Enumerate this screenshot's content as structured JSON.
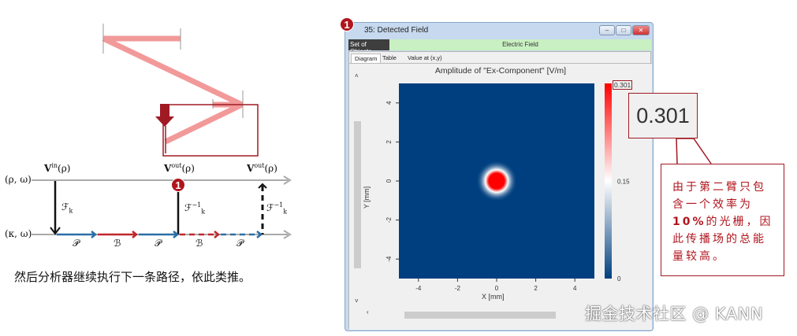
{
  "diagram": {
    "top_axis_label": "(ρ, ω)",
    "bottom_axis_label": "(κ, ω)",
    "v_in": {
      "base": "V",
      "sup": "in",
      "sub": "⊥",
      "arg": "(ρ)"
    },
    "v_out": {
      "base": "V",
      "sup": "out",
      "sub": "⊥",
      "arg": "(ρ)"
    },
    "f_k": {
      "base": "ℱ",
      "sub": "k"
    },
    "f_k_inv": {
      "base": "ℱ",
      "sub": "k",
      "sup": "−1"
    },
    "segments": [
      "𝒫",
      "ℬ",
      "𝒫",
      "ℬ",
      "𝒫"
    ],
    "badge": "1",
    "colors": {
      "propagation": "#2b6ea6",
      "grating": "#c0262e",
      "beam": "#f08080",
      "highlight": "#a01a24"
    }
  },
  "paragraph": "然后分析器继续执行下一条路径，依此类推。",
  "window": {
    "badge": "1",
    "title": "35: Detected Field",
    "buttons": {
      "minimize": "–",
      "maximize": "□",
      "close": "✕"
    },
    "set_of_objects": "Set of Objects",
    "object_name": "Electric Field",
    "tabs": [
      {
        "label": "Diagram",
        "active": true
      },
      {
        "label": "Table",
        "active": false
      },
      {
        "label": "Value at (x,y)",
        "active": false
      }
    ]
  },
  "chart_data": {
    "type": "heatmap",
    "title": "Amplitude of \"Ex-Component\"  [V/m]",
    "xlabel": "X [mm]",
    "ylabel": "Y [mm]",
    "xlim": [
      -5,
      5
    ],
    "ylim": [
      -5,
      5
    ],
    "xticks": [
      "-4",
      "-2",
      "0",
      "2",
      "4"
    ],
    "yticks": [
      "-4",
      "-2",
      "0",
      "2",
      "4"
    ],
    "colorbar": {
      "min": 0,
      "max": 0.301,
      "ticks": [
        "0",
        "0.15",
        "0.301"
      ],
      "colors": [
        "#003f7f",
        "#ffffff",
        "#ff0000"
      ]
    },
    "content": "circular spot centered at (0,0), peak 0.301 inside radius ~0.8 mm, zero background"
  },
  "callout": {
    "value": "0.301",
    "text_parts": [
      "由于第二臂只包含一个效率为",
      "10%",
      "的光栅，因此传播场的总能量较高。"
    ]
  },
  "watermark": "掘金技术社区 @ KANN"
}
